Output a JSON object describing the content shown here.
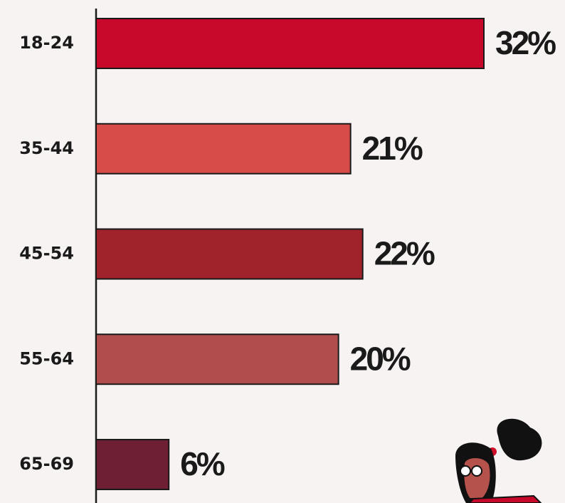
{
  "chart_data": {
    "type": "bar",
    "orientation": "horizontal",
    "categories": [
      "18-24",
      "35-44",
      "45-54",
      "55-64",
      "65-69"
    ],
    "values": [
      32,
      21,
      22,
      20,
      6
    ],
    "value_labels": [
      "32%",
      "21%",
      "22%",
      "20%",
      "6%"
    ],
    "colors": [
      "#c8082a",
      "#d74c48",
      "#a0232b",
      "#b04d4d",
      "#6e1f33"
    ]
  }
}
